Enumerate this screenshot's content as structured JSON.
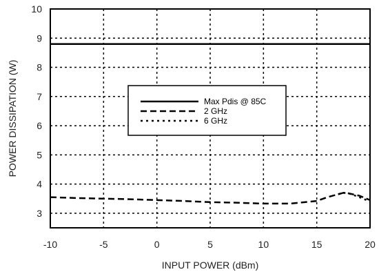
{
  "chart_data": {
    "type": "line",
    "xlabel": "INPUT POWER (dBm)",
    "ylabel": "POWER DISSIPATION (W)",
    "xlim": [
      -10,
      20
    ],
    "ylim": [
      2.5,
      10
    ],
    "xticks": [
      -10,
      -5,
      0,
      5,
      10,
      15,
      20
    ],
    "yticks": [
      3,
      4,
      5,
      6,
      7,
      8,
      9,
      10
    ],
    "grid": true,
    "legend_position": "center",
    "series": [
      {
        "name": "Max Pdis @ 85C",
        "style": "solid",
        "color": "#000000",
        "x": [
          -10,
          20
        ],
        "y": [
          8.8,
          8.8
        ]
      },
      {
        "name": "2 GHz",
        "style": "dashed",
        "color": "#000000",
        "x": [
          -10,
          -7.5,
          -5,
          -2.5,
          0,
          2.5,
          5,
          7.5,
          10,
          12.5,
          15,
          16,
          17,
          17.5,
          18,
          19,
          20
        ],
        "y": [
          3.55,
          3.52,
          3.5,
          3.48,
          3.45,
          3.42,
          3.38,
          3.36,
          3.33,
          3.33,
          3.42,
          3.55,
          3.65,
          3.7,
          3.68,
          3.6,
          3.45
        ]
      },
      {
        "name": "6 GHz",
        "style": "dotted",
        "color": "#000000",
        "x": [
          17,
          17.5,
          18,
          19,
          20
        ],
        "y": [
          3.65,
          3.7,
          3.68,
          3.55,
          3.4
        ]
      }
    ]
  }
}
